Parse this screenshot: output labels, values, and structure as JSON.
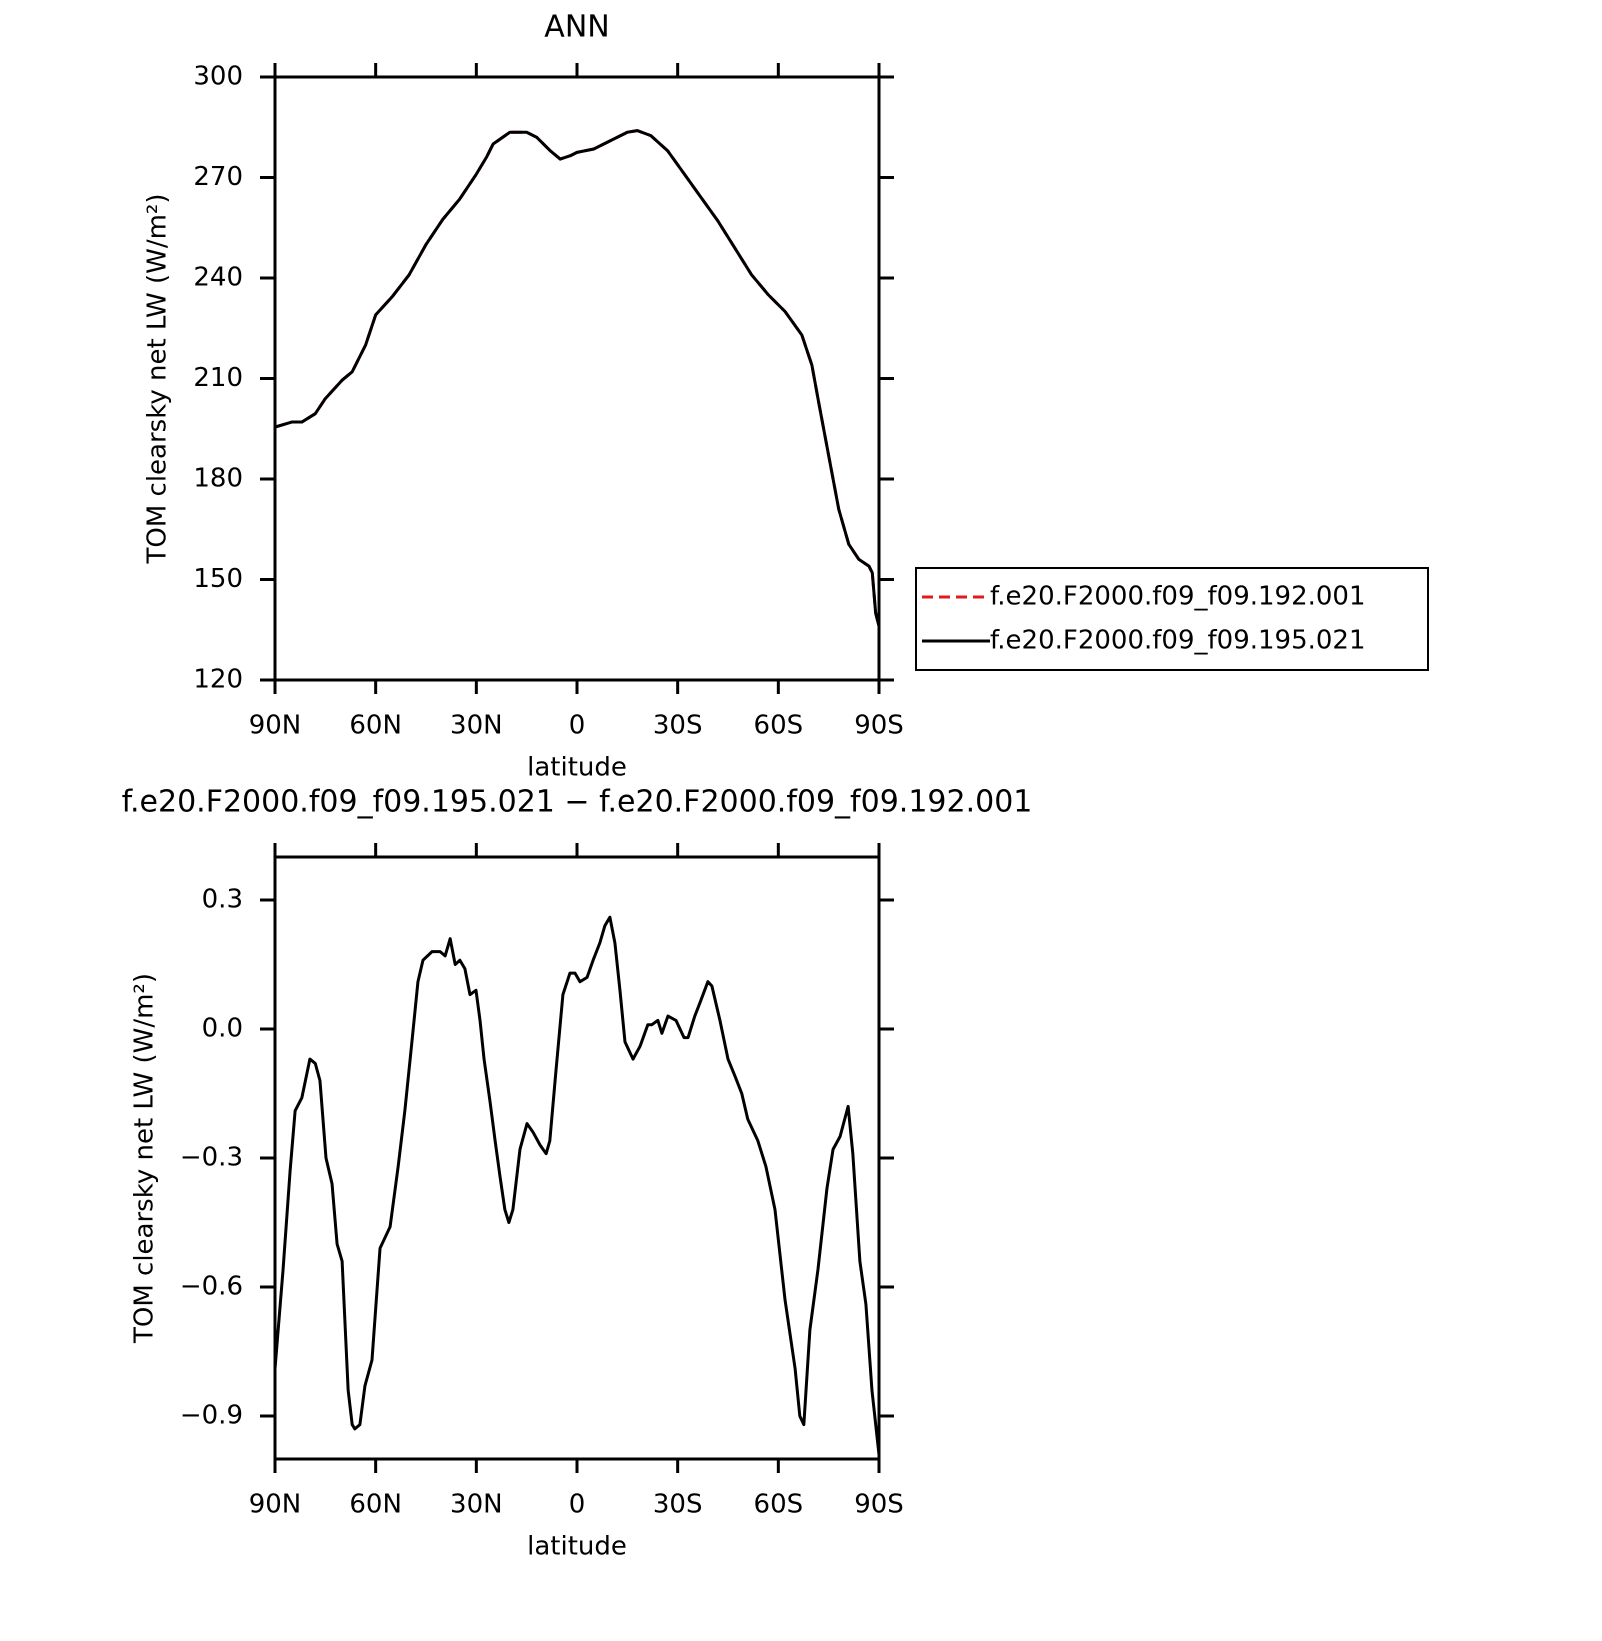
{
  "chart_data": [
    {
      "type": "line",
      "title": "ANN",
      "xlabel": "latitude",
      "ylabel": "TOM clearsky net LW (W/m²)",
      "x": [
        90,
        85,
        82,
        78,
        75,
        70,
        67,
        63,
        60,
        55,
        50,
        45,
        40,
        35,
        30,
        27,
        25,
        20,
        15,
        12,
        8,
        5,
        2,
        0,
        -5,
        -10,
        -15,
        -18,
        -22,
        -27,
        -32,
        -37,
        -42,
        -47,
        -52,
        -57,
        -62,
        -67,
        -70,
        -72,
        -75,
        -78,
        -81,
        -84,
        -87,
        -88,
        -89,
        -90
      ],
      "series": [
        {
          "name": "f.e20.F2000.f09_f09.192.001",
          "color": "#e31a1c",
          "linestyle": "dashed",
          "values": [
            195.5,
            197,
            197,
            199.5,
            204,
            209.5,
            212,
            220,
            229,
            234.5,
            241,
            250,
            257.5,
            263.5,
            271,
            276,
            280,
            283.5,
            283.5,
            282,
            278,
            275.5,
            276.5,
            277.5,
            278.5,
            281,
            283.5,
            284,
            282.5,
            278,
            271,
            264,
            257,
            249,
            241,
            235,
            230,
            223,
            214,
            203,
            187,
            171,
            160.5,
            156,
            154,
            152,
            140,
            136
          ]
        },
        {
          "name": "f.e20.F2000.f09_f09.195.021",
          "color": "#000000",
          "linestyle": "solid",
          "values": [
            195.5,
            197,
            197,
            199.5,
            204,
            209.5,
            212,
            220,
            229,
            234.5,
            241,
            250,
            257.5,
            263.5,
            271,
            276,
            280,
            283.5,
            283.5,
            282,
            278,
            275.5,
            276.5,
            277.5,
            278.5,
            281,
            283.5,
            284,
            282.5,
            278,
            271,
            264,
            257,
            249,
            241,
            235,
            230,
            223,
            214,
            203,
            187,
            171,
            160.5,
            156,
            154,
            152,
            140,
            136
          ]
        }
      ],
      "xlim": [
        90,
        -90
      ],
      "xticks": [
        {
          "value": 90,
          "label": "90N"
        },
        {
          "value": 60,
          "label": "60N"
        },
        {
          "value": 30,
          "label": "30N"
        },
        0,
        {
          "value": -30,
          "label": "30S"
        },
        {
          "value": -60,
          "label": "60S"
        },
        {
          "value": -90,
          "label": "90S"
        }
      ],
      "ylim": [
        120,
        300
      ],
      "yticks": [
        120,
        150,
        180,
        210,
        240,
        270,
        300
      ],
      "legend": "right"
    },
    {
      "type": "line",
      "title": "f.e20.F2000.f09_f09.195.021 − f.e20.F2000.f09_f09.192.001",
      "xlabel": "latitude",
      "ylabel": "TOM clearsky net LW (W/m²)",
      "x": [
        90,
        87.6,
        85.5,
        84,
        82,
        79.6,
        78,
        76.6,
        74.8,
        73,
        71.5,
        70,
        68.2,
        67,
        66.2,
        64.7,
        63.2,
        61.1,
        58.7,
        55.7,
        53.3,
        51.3,
        49.2,
        47.4,
        45.9,
        43.2,
        40.8,
        39.3,
        37.8,
        36.3,
        34.9,
        33.4,
        31.9,
        30.1,
        28.9,
        27.7,
        25.9,
        24.4,
        23,
        21.5,
        20.3,
        19.1,
        17,
        14.9,
        13.1,
        11,
        9.2,
        8.1,
        6.3,
        4.2,
        2.1,
        0.6,
        -0.9,
        -3,
        -4.8,
        -6.8,
        -8.3,
        -9.8,
        -11.3,
        -12.8,
        -14.3,
        -16.7,
        -18.8,
        -21.1,
        -22.3,
        -24.1,
        -25.3,
        -27.1,
        -29.5,
        -31.9,
        -33.1,
        -35.1,
        -36.6,
        -39,
        -40.2,
        -42.6,
        -45,
        -47.1,
        -49.1,
        -50.9,
        -53.9,
        -56.3,
        -59,
        -62,
        -65,
        -66.4,
        -67.6,
        -69.4,
        -71.8,
        -74.5,
        -76.3,
        -78.4,
        -80.8,
        -82.2,
        -84.3,
        -86.1,
        -87.9,
        -90
      ],
      "series": [
        {
          "color": "#000000",
          "linestyle": "solid",
          "values": [
            -0.79,
            -0.56,
            -0.33,
            -0.19,
            -0.16,
            -0.07,
            -0.08,
            -0.12,
            -0.3,
            -0.36,
            -0.5,
            -0.54,
            -0.84,
            -0.92,
            -0.93,
            -0.92,
            -0.83,
            -0.77,
            -0.51,
            -0.46,
            -0.32,
            -0.19,
            -0.03,
            0.11,
            0.16,
            0.18,
            0.18,
            0.17,
            0.21,
            0.15,
            0.16,
            0.14,
            0.08,
            0.09,
            0.02,
            -0.07,
            -0.17,
            -0.26,
            -0.34,
            -0.42,
            -0.45,
            -0.42,
            -0.28,
            -0.22,
            -0.24,
            -0.27,
            -0.29,
            -0.26,
            -0.1,
            0.08,
            0.13,
            0.13,
            0.11,
            0.12,
            0.16,
            0.2,
            0.24,
            0.26,
            0.2,
            0.09,
            -0.03,
            -0.07,
            -0.04,
            0.01,
            0.01,
            0.02,
            -0.01,
            0.03,
            0.02,
            -0.02,
            -0.02,
            0.03,
            0.06,
            0.11,
            0.1,
            0.02,
            -0.07,
            -0.11,
            -0.15,
            -0.21,
            -0.26,
            -0.32,
            -0.42,
            -0.63,
            -0.79,
            -0.9,
            -0.92,
            -0.7,
            -0.56,
            -0.37,
            -0.28,
            -0.25,
            -0.18,
            -0.29,
            -0.54,
            -0.64,
            -0.84,
            -0.99
          ]
        }
      ],
      "xlim": [
        90,
        -90
      ],
      "xticks": [
        {
          "value": 90,
          "label": "90N"
        },
        {
          "value": 60,
          "label": "60N"
        },
        {
          "value": 30,
          "label": "30N"
        },
        0,
        {
          "value": -30,
          "label": "30S"
        },
        {
          "value": -60,
          "label": "60S"
        },
        {
          "value": -90,
          "label": "90S"
        }
      ],
      "ylim": [
        -1.0,
        0.4
      ],
      "yticks": [
        {
          "value": -0.9,
          "label": "−0.9"
        },
        {
          "value": -0.6,
          "label": "−0.6"
        },
        {
          "value": -0.3,
          "label": "−0.3"
        },
        {
          "value": 0,
          "label": "0.0"
        },
        0.3
      ]
    }
  ]
}
